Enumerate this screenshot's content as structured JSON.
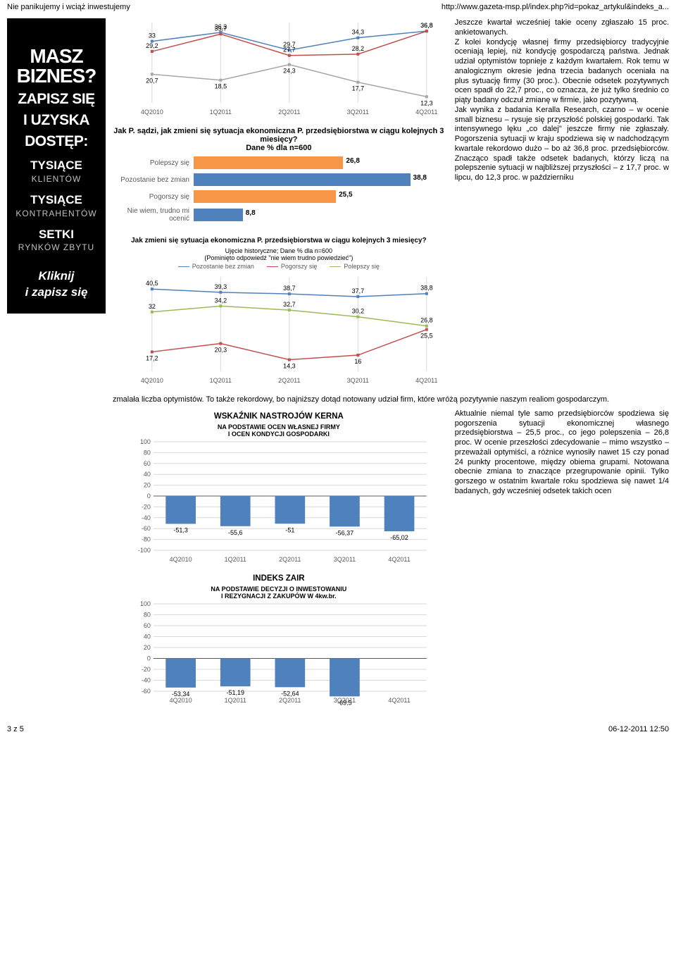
{
  "header": {
    "left": "Nie panikujemy i wciąż inwestujemy",
    "right": "http://www.gazeta-msp.pl/index.php?id=pokaz_artykul&indeks_a..."
  },
  "footer": {
    "left": "3 z 5",
    "right": "06-12-2011 12:50"
  },
  "sidebar": {
    "line1": "MASZ",
    "line2": "BIZNES?",
    "line3": "ZAPISZ SIĘ",
    "line4": "I UZYSKA",
    "line5": "DOSTĘP:",
    "g1a": "TYSIĄCE",
    "g1b": "KLIENTÓW",
    "g2a": "TYSIĄCE",
    "g2b": "KONTRAHENTÓW",
    "g3a": "SETKI",
    "g3b": "RYNKÓW ZBYTU",
    "click1": "Kliknij",
    "click2": "i zapisz się"
  },
  "chart1": {
    "type": "line",
    "p1": {
      "4Q2010": 20.7,
      "1Q2011": 18.5,
      "2Q2011": 24.3,
      "3Q2011": 17.7,
      "4Q2011": 12.3
    },
    "p2": {
      "4Q2010": 29.2,
      "1Q2011": 35.7,
      "2Q2011": 27.7,
      "3Q2011": 28.2,
      "4Q2011": 36.8
    },
    "p3": {
      "4Q2010": 33.0,
      "1Q2011": 36.3,
      "2Q2011": 29.7,
      "3Q2011": 34.3,
      "4Q2011": 36.8
    },
    "color1": "#a6a6a6",
    "color2": "#c0504d",
    "color3": "#4f81bd",
    "labels": [
      "4Q2010",
      "1Q2011",
      "2Q2011",
      "3Q2011",
      "4Q2011"
    ],
    "grid": "#d9d9d9"
  },
  "chart2": {
    "type": "bar-h",
    "title": "Jak P. sądzi, jak zmieni się sytuacja ekonomiczna P. przedsiębiorstwa w ciągu kolejnych 3 miesięcy?\nDane % dla n=600",
    "rows": [
      {
        "label": "Polepszy się",
        "value": 26.8,
        "color": "#f79646"
      },
      {
        "label": "Pozostanie bez zmian",
        "value": 38.8,
        "color": "#4f81bd"
      },
      {
        "label": "Pogorszy się",
        "value": 25.5,
        "color": "#f79646"
      },
      {
        "label": "Nie wiem, trudno mi ocenić",
        "value": 8.8,
        "color": "#4f81bd"
      }
    ],
    "max": 45
  },
  "chart3": {
    "type": "line",
    "title": "Jak zmieni się sytuacja ekonomiczna P. przedsiębiorstwa w ciągu kolejnych 3 miesięcy?",
    "sub1": "Ujęcie historyczne; Dane % dla n=600",
    "sub2": "(Pominięto odpowiedź \"nie wiem trudno powiedzieć\")",
    "legend": [
      "Pozostanie bez zmian",
      "Pogorszy się",
      "Polepszy się"
    ],
    "colors": [
      "#4f81bd",
      "#c0504d",
      "#9bbb59"
    ],
    "s1": {
      "4Q2010": 40.5,
      "1Q2011": 39.3,
      "2Q2011": 38.7,
      "3Q2011": 37.7,
      "4Q2011": 38.8
    },
    "s2": {
      "4Q2010": 17.2,
      "1Q2011": 20.3,
      "2Q2011": 14.3,
      "3Q2011": 16.0,
      "4Q2011": 25.5
    },
    "s3": {
      "4Q2010": 32.0,
      "1Q2011": 34.2,
      "2Q2011": 32.7,
      "3Q2011": 30.2,
      "4Q2011": 26.8
    },
    "labels": [
      "4Q2010",
      "1Q2011",
      "2Q2011",
      "3Q2011",
      "4Q2011"
    ],
    "grid": "#d9d9d9",
    "ylim": [
      10,
      45
    ]
  },
  "chart4": {
    "type": "bar-v",
    "title": "WSKAŹNIK NASTROJÓW KERNA",
    "sub": "NA PODSTAWIE OCEN WŁASNEJ FIRMY\nI OCEN KONDYCJI GOSPODARKI",
    "labels": [
      "4Q2010",
      "1Q2011",
      "2Q2011",
      "3Q2011",
      "4Q2011"
    ],
    "values": [
      -51.3,
      -55.6,
      -51.0,
      -56.37,
      -65.02
    ],
    "color": "#4f81bd",
    "grid": "#d9d9d9",
    "ylim": [
      -100,
      100
    ],
    "ystep": 20
  },
  "chart5": {
    "type": "bar-v",
    "title": "INDEKS ZAIR",
    "sub": "NA PODSTAWIE DECYZJI O INWESTOWANIU\nI REZYGNACJI Z ZAKUPÓW W 4kw.br.",
    "labels": [
      "4Q2010",
      "1Q2011",
      "2Q2011",
      "3Q2011",
      "4Q2011"
    ],
    "values": [
      -53.34,
      -51.19,
      -52.64,
      -69.5,
      null
    ],
    "color": "#4f81bd",
    "grid": "#d9d9d9",
    "ylim": [
      -60,
      100
    ],
    "ystep": 20
  },
  "text1": "Jeszcze kwartał wcześniej takie oceny zgłaszało 15 proc. ankietowanych.\nZ kolei kondycję własnej firmy przedsiębiorcy tradycyjnie oceniają lepiej, niż kondycję gospodarczą państwa. Jednak udział optymistów topnieje z każdym kwartałem. Rok temu w analogicznym okresie jedna trzecia badanych oceniała na plus sytuację firmy (30 proc.). Obecnie odsetek pozytywnych ocen spadł do 22,7 proc., co oznacza, że już tylko średnio co piąty badany odczuł zmianę w firmie, jako pozytywną.\nJak wynika z badania Keralla Research, czarno – w ocenie small biznesu – rysuje się przyszłość polskiej gospodarki. Tak intensywnego lęku „co dalej\" jeszcze firmy nie zgłaszały. Pogorszenia sytuacji w kraju spodziewa się w nadchodzącym kwartale rekordowo dużo – bo aż 36,8 proc. przedsiębiorców. Znacząco spadł także odsetek badanych, którzy liczą na polepszenie sytuacji w najbliższej przyszłości – z 17,7 proc. w lipcu, do 12,3 proc. w październiku",
  "text_full": "zmalała liczba optymistów. To także rekordowy, bo najniższy dotąd notowany udział firm, które wróżą pozytywnie naszym realiom gospodarczym.",
  "text2": "Aktualnie niemal tyle samo przedsiębiorców spodziewa się pogorszenia sytuacji ekonomicznej własnego przedsiębiorstwa – 25,5 proc., co jego polepszenia – 26,8 proc. W ocenie przeszłości zdecydowanie – mimo wszystko – przeważali optymiści, a różnice wynosiły nawet 15 czy ponad 24 punkty procentowe, między obiema grupami. Notowana obecnie zmiana to znaczące przegrupowanie opinii. Tylko gorszego w ostatnim kwartale roku spodziewa się nawet 1/4 badanych, gdy wcześniej odsetek takich ocen"
}
